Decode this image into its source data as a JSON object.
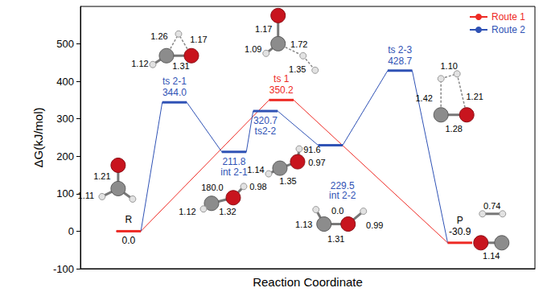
{
  "chart_data": {
    "type": "line",
    "x_label": "Reaction Coordinate",
    "y_label": "ΔG(kJ/mol)",
    "xlim": [
      0,
      100
    ],
    "ylim": [
      -100,
      600
    ],
    "yticks": [
      -100,
      0,
      100,
      200,
      300,
      400,
      500
    ],
    "tick_labels": "y",
    "grid": false,
    "legend": "upper right",
    "data_labels": true,
    "states": [
      "R",
      "ts 2-1",
      "int 2-1",
      "ts2-2",
      "ts 1",
      "int 2-2",
      "ts 2-3",
      "P"
    ],
    "x": [
      10.6,
      20.7,
      33.8,
      40.7,
      44.2,
      55.0,
      70.3,
      83.5
    ],
    "values": [
      0.0,
      344.0,
      211.8,
      320.7,
      350.2,
      229.5,
      428.7,
      -30.9
    ],
    "value_labels": [
      "0.0",
      "344.0",
      "211.8",
      "320.7",
      "350.2",
      "229.5",
      "428.7",
      "-30.9"
    ],
    "structure_labels": [
      [
        "1.21",
        "1.11"
      ],
      [
        "1.26",
        "1.17",
        "1.12",
        "1.31"
      ],
      [
        "180.0",
        "0.98",
        "1.12",
        "1.32"
      ],
      [
        "91.6",
        "1.14",
        "0.97",
        "1.35"
      ],
      [
        "1.17",
        "1.09",
        "1.72",
        "1.35"
      ],
      [
        "0.0",
        "1.13",
        "0.99",
        "1.31"
      ],
      [
        "1.10",
        "1.42",
        "1.21",
        "1.28"
      ],
      [
        "0.74",
        "1.14"
      ]
    ],
    "series": [
      {
        "name": "Route 1",
        "color": "#ee2a24",
        "states": [
          "R",
          "ts 1",
          "P"
        ]
      },
      {
        "name": "Route 2",
        "color": "#2f52b5",
        "states": [
          "R",
          "ts 2-1",
          "int 2-1",
          "ts2-2",
          "int 2-2",
          "ts 2-3",
          "P"
        ]
      }
    ]
  }
}
